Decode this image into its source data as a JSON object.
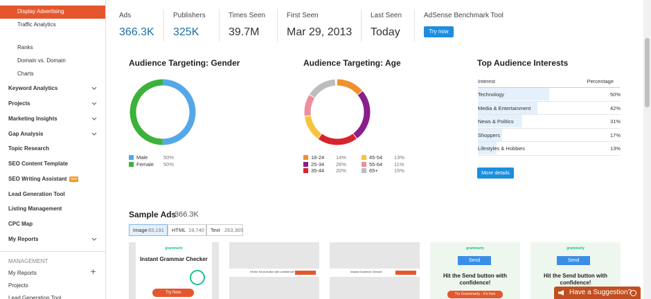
{
  "sidebar": {
    "items": [
      "Display Advertising",
      "Traffic Analytics",
      "Ranks",
      "Domain vs. Domain",
      "Charts",
      "Keyword Analytics",
      "Projects",
      "Marketing Insights",
      "Gap Analysis",
      "Topic Research",
      "SEO Content Template",
      "SEO Writing Assistant",
      "Lead Generation Tool",
      "Listing Management",
      "CPC Map",
      "My Reports"
    ],
    "badge": "new",
    "section": "MANAGEMENT",
    "management_items": [
      "My Reports",
      "Projects",
      "Lead Generation Tool"
    ]
  },
  "stats": [
    {
      "label": "Ads",
      "value": "366.3K"
    },
    {
      "label": "Publishers",
      "value": "325K"
    },
    {
      "label": "Times Seen",
      "value": "39.7M"
    },
    {
      "label": "First Seen",
      "value": "Mar 29, 2013"
    },
    {
      "label": "Last Seen",
      "value": "Today"
    },
    {
      "label": "AdSense Benchmark Tool",
      "button": "Try now"
    }
  ],
  "gender": {
    "title": "Audience Targeting: Gender",
    "segments": [
      {
        "name": "Male",
        "value": 50,
        "label": "50%",
        "color": "#55a8e8"
      },
      {
        "name": "Female",
        "value": 50,
        "label": "50%",
        "color": "#3db13a"
      }
    ]
  },
  "age": {
    "title": "Audience Targeting: Age",
    "segments": [
      {
        "name": "18-24",
        "value": 14,
        "label": "14%",
        "color": "#f0902c"
      },
      {
        "name": "25-34",
        "value": 26,
        "label": "26%",
        "color": "#8a1e8c"
      },
      {
        "name": "35-44",
        "value": 20,
        "label": "20%",
        "color": "#d9232f"
      },
      {
        "name": "45-54",
        "value": 13,
        "label": "13%",
        "color": "#f6c43c"
      },
      {
        "name": "55-64",
        "value": 11,
        "label": "11%",
        "color": "#ef8e9b"
      },
      {
        "name": "65+",
        "value": 15,
        "label": "15%",
        "color": "#bdbdbd"
      }
    ]
  },
  "interests": {
    "title": "Top Audience Interests",
    "columns": [
      "Interest",
      "Percentage"
    ],
    "rows": [
      {
        "name": "Technology",
        "value": 50,
        "label": "50%"
      },
      {
        "name": "Media & Entertainment",
        "value": 42,
        "label": "42%"
      },
      {
        "name": "News & Politics",
        "value": 31,
        "label": "31%"
      },
      {
        "name": "Shoppers",
        "value": 17,
        "label": "17%"
      },
      {
        "name": "Lifestyles & Hobbies",
        "value": 13,
        "label": "13%"
      }
    ],
    "button": "More details"
  },
  "sample_ads": {
    "title": "Sample Ads",
    "count": "366.3K",
    "tabs": [
      {
        "name": "Image",
        "count": "83,191"
      },
      {
        "name": "HTML",
        "count": "19,740"
      },
      {
        "name": "Text",
        "count": "263,365"
      }
    ],
    "ads": [
      {
        "brand": "grammarly",
        "headline": "Instant Grammar Checker",
        "cta": "Try Now"
      },
      {
        "headline": "Hit the Send button with confidence!"
      },
      {
        "headline": "Instant Grammar Checker"
      },
      {
        "brand": "grammarly",
        "button": "Send",
        "headline": "Hit the Send button with confidence!",
        "cta": "Try Grammarly - it's free"
      },
      {
        "brand": "grammarly",
        "button": "Send",
        "headline": "Hit the Send button with confidence!"
      }
    ]
  },
  "suggestion": "Have a Suggestion?"
}
